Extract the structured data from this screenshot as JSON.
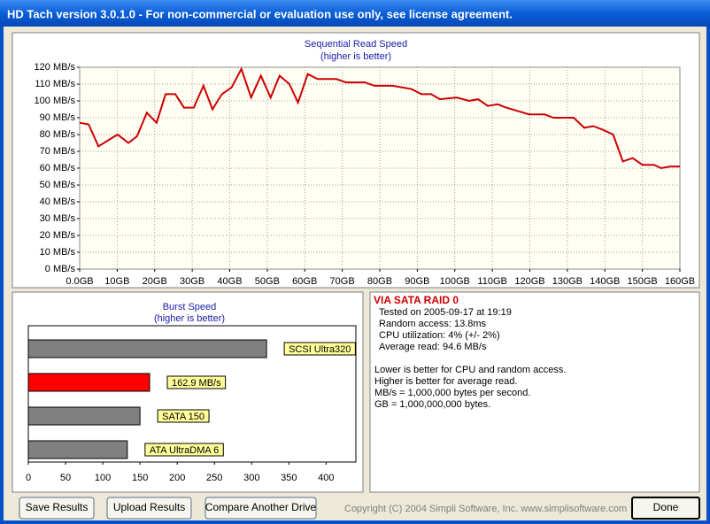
{
  "window": {
    "title": "HD Tach version 3.0.1.0  - For non-commercial or evaluation use only, see license agreement."
  },
  "chart_data": [
    {
      "type": "line",
      "title": "Sequential Read Speed",
      "subtitle": "(higher is better)",
      "x": [
        0,
        2.4,
        5.0,
        10.1,
        13.0,
        15.3,
        17.9,
        20.5,
        22.9,
        25.5,
        27.8,
        30.4,
        33.0,
        35.4,
        37.9,
        40.5,
        43.1,
        45.7,
        48.3,
        50.9,
        53.3,
        55.9,
        58.2,
        60.8,
        63.4,
        68.4,
        71.0,
        76.0,
        78.6,
        83.5,
        88.5,
        91.1,
        93.7,
        96.0,
        100.5,
        103.8,
        106.2,
        108.8,
        111.4,
        113.7,
        116.8,
        119.8,
        123.9,
        126.3,
        131.7,
        134.5,
        136.9,
        139.3,
        142.2,
        144.8,
        147.4,
        150.0,
        153.1,
        155.0,
        157.4,
        160
      ],
      "series": [
        {
          "color": "#cc0000",
          "values": [
            87,
            86,
            73,
            80,
            75,
            79,
            93,
            87,
            104,
            104,
            96,
            96,
            109,
            95,
            104,
            108,
            119,
            102,
            115,
            102,
            115,
            110,
            99,
            116,
            113,
            113,
            111,
            111,
            109,
            109,
            107,
            104,
            104,
            101,
            102,
            100,
            101,
            97,
            98,
            96,
            94,
            92,
            92,
            90,
            90,
            84,
            85,
            83,
            80,
            64,
            66,
            62,
            62,
            60,
            61,
            61
          ]
        }
      ],
      "xlim": [
        0,
        160
      ],
      "xticks": [
        {
          "value": 0,
          "label": "0.0GB"
        },
        {
          "value": 10,
          "label": "10GB"
        },
        {
          "value": 20,
          "label": "20GB"
        },
        {
          "value": 30,
          "label": "30GB"
        },
        {
          "value": 40,
          "label": "40GB"
        },
        {
          "value": 50,
          "label": "50GB"
        },
        {
          "value": 60,
          "label": "60GB"
        },
        {
          "value": 70,
          "label": "70GB"
        },
        {
          "value": 80,
          "label": "80GB"
        },
        {
          "value": 90,
          "label": "90GB"
        },
        {
          "value": 100,
          "label": "100GB"
        },
        {
          "value": 110,
          "label": "110GB"
        },
        {
          "value": 120,
          "label": "120GB"
        },
        {
          "value": 130,
          "label": "130GB"
        },
        {
          "value": 140,
          "label": "140GB"
        },
        {
          "value": 150,
          "label": "150GB"
        },
        {
          "value": 160,
          "label": "160GB"
        }
      ],
      "ylim": [
        0,
        120
      ],
      "yticks": [
        {
          "value": 0,
          "label": "0 MB/s"
        },
        {
          "value": 10,
          "label": "10 MB/s"
        },
        {
          "value": 20,
          "label": "20 MB/s"
        },
        {
          "value": 30,
          "label": "30 MB/s"
        },
        {
          "value": 40,
          "label": "40 MB/s"
        },
        {
          "value": 50,
          "label": "50 MB/s"
        },
        {
          "value": 60,
          "label": "60 MB/s"
        },
        {
          "value": 70,
          "label": "70 MB/s"
        },
        {
          "value": 80,
          "label": "80 MB/s"
        },
        {
          "value": 90,
          "label": "90 MB/s"
        },
        {
          "value": 100,
          "label": "100 MB/s"
        },
        {
          "value": 110,
          "label": "110 MB/s"
        },
        {
          "value": 120,
          "label": "120 MB/s"
        }
      ],
      "grid": true
    },
    {
      "type": "bar",
      "orientation": "horizontal",
      "title": "Burst Speed",
      "subtitle": "(higher is better)",
      "categories": [
        "SCSI Ultra320",
        null,
        "SATA 150",
        "ATA UltraDMA 6"
      ],
      "values": [
        320,
        162.9,
        150,
        133
      ],
      "value_labels": [
        null,
        "162.9 MB/s",
        null,
        null
      ],
      "colors": [
        "#808080",
        "#ff0000",
        "#808080",
        "#808080"
      ],
      "xlim": [
        0,
        440
      ],
      "xticks": [
        0,
        50,
        100,
        150,
        200,
        250,
        300,
        350,
        400
      ],
      "grid": false
    }
  ],
  "info": {
    "drive": "VIA SATA RAID 0",
    "results": [
      "Tested on 2005-09-17 at 19:19",
      "Random access: 13.8ms",
      "CPU utilization: 4% (+/- 2%)",
      "Average read: 94.6 MB/s"
    ],
    "notes": [
      "Lower is better for CPU and random access.",
      "Higher is better for average read.",
      "MB/s = 1,000,000 bytes per second.",
      "GB = 1,000,000,000 bytes."
    ]
  },
  "buttons": [
    "Save Results",
    "Upload Results",
    "Compare Another Drive"
  ],
  "copyright": "Copyright (C) 2004 Simpli Software, Inc. www.simplisoftware.com",
  "done": "Done"
}
